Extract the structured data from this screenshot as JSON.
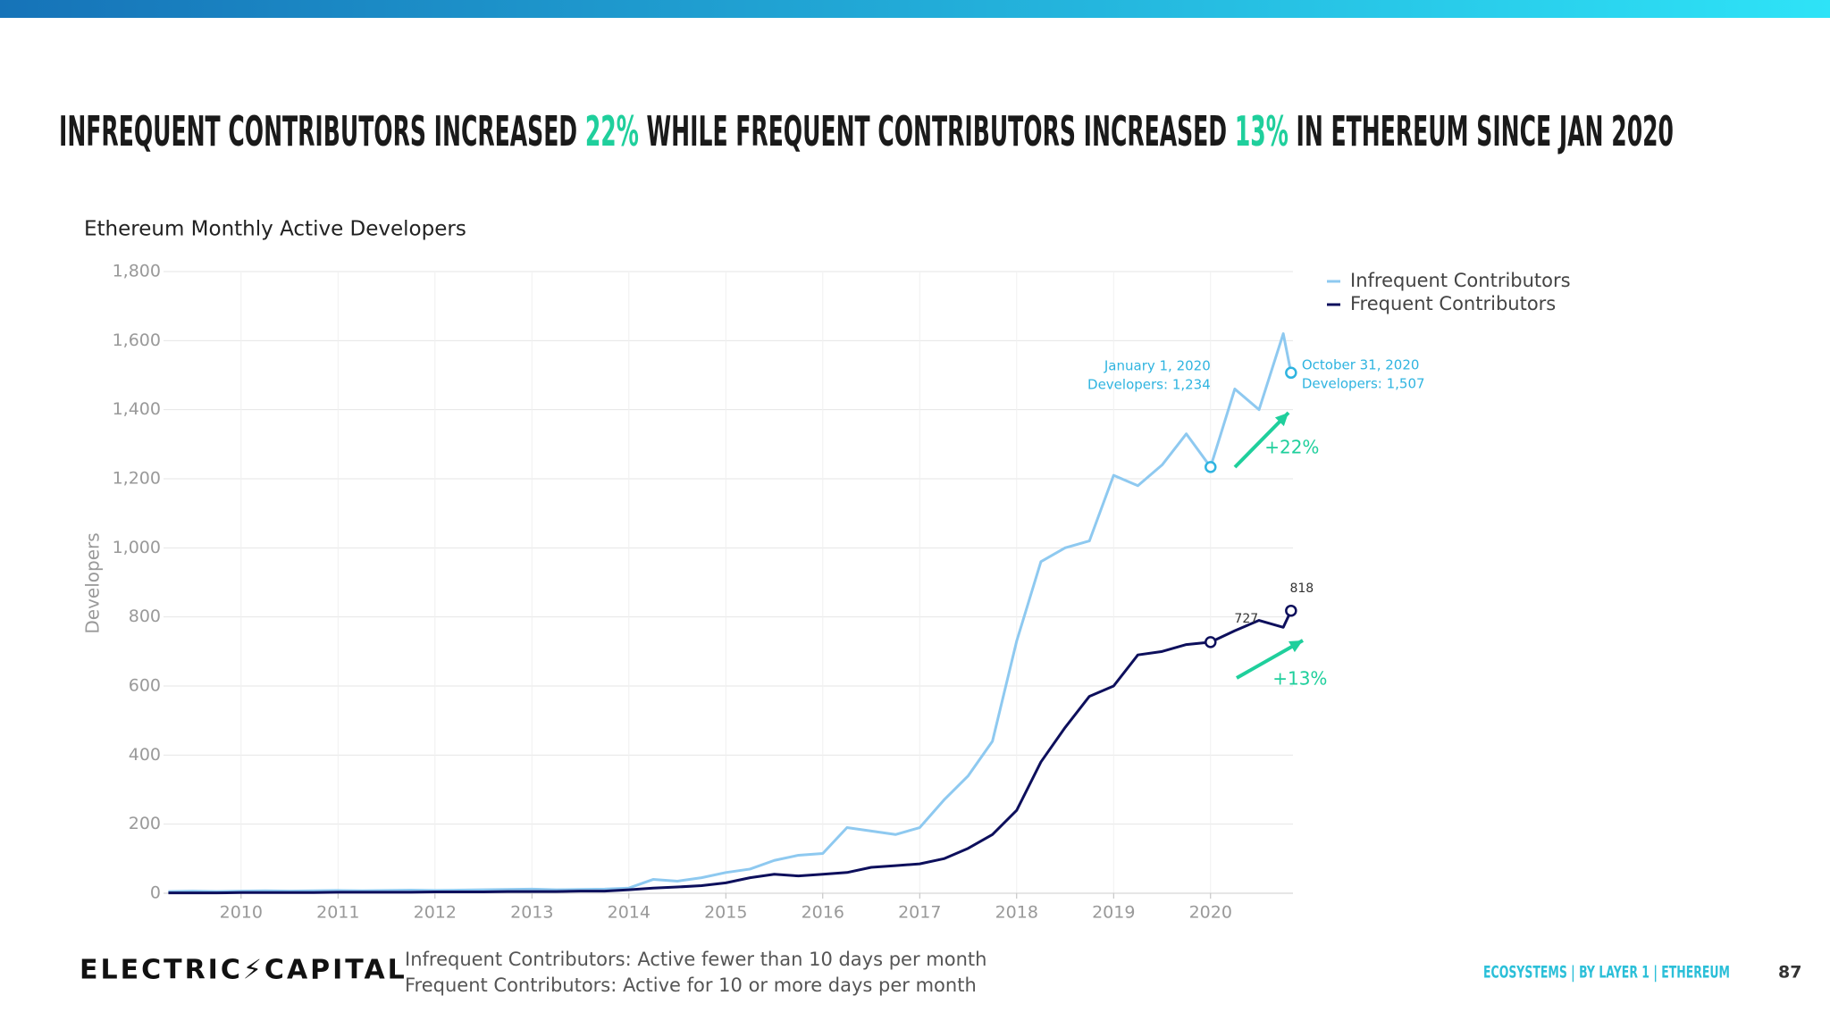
{
  "slide": {
    "title": [
      {
        "text": "INFREQUENT CONTRIBUTORS INCREASED ",
        "highlight": false
      },
      {
        "text": "22%",
        "highlight": true
      },
      {
        "text": " WHILE FREQUENT CONTRIBUTORS INCREASED ",
        "highlight": false
      },
      {
        "text": "13%",
        "highlight": true
      },
      {
        "text": " IN ETHEREUM SINCE JAN 2020",
        "highlight": false
      }
    ],
    "logo": "ELECTRIC⚡CAPITAL",
    "notes": [
      "Infrequent Contributors: Active fewer than 10 days per month",
      "Frequent Contributors: Active for 10 or more days per month"
    ],
    "breadcrumb": "ECOSYSTEMS | BY LAYER 1 | ETHEREUM",
    "page": "87"
  },
  "chart_data": {
    "type": "line",
    "title": "Ethereum Monthly Active Developers",
    "y_label": "Developers",
    "x": [
      2009.25,
      2009.5,
      2009.75,
      2010,
      2010.25,
      2010.5,
      2010.75,
      2011,
      2011.25,
      2011.5,
      2011.75,
      2012,
      2012.25,
      2012.5,
      2012.75,
      2013,
      2013.25,
      2013.5,
      2013.75,
      2014,
      2014.25,
      2014.5,
      2014.75,
      2015,
      2015.25,
      2015.5,
      2015.75,
      2016,
      2016.25,
      2016.5,
      2016.75,
      2017,
      2017.25,
      2017.5,
      2017.75,
      2018,
      2018.25,
      2018.5,
      2018.75,
      2019,
      2019.25,
      2019.5,
      2019.75,
      2020,
      2020.25,
      2020.5,
      2020.75,
      2020.83
    ],
    "series": [
      {
        "name": "Infrequent Contributors",
        "color": "#8ec9f0",
        "values": [
          5,
          6,
          5,
          6,
          7,
          6,
          7,
          8,
          7,
          8,
          9,
          8,
          9,
          10,
          11,
          12,
          10,
          11,
          12,
          15,
          40,
          35,
          45,
          60,
          70,
          95,
          110,
          115,
          190,
          180,
          170,
          190,
          270,
          340,
          440,
          730,
          960,
          1000,
          1020,
          1210,
          1180,
          1240,
          1330,
          1234,
          1460,
          1400,
          1620,
          1507
        ]
      },
      {
        "name": "Frequent Contributors",
        "color": "#0d0f5c",
        "values": [
          1,
          1,
          1,
          2,
          2,
          2,
          2,
          3,
          3,
          3,
          3,
          4,
          4,
          4,
          5,
          5,
          5,
          6,
          6,
          10,
          15,
          18,
          22,
          30,
          45,
          55,
          50,
          55,
          60,
          75,
          80,
          85,
          100,
          130,
          170,
          240,
          380,
          480,
          570,
          600,
          690,
          700,
          720,
          727,
          760,
          790,
          770,
          818
        ]
      }
    ],
    "xlim": [
      2009.2,
      2020.85
    ],
    "xticks": [
      2010,
      2011,
      2012,
      2013,
      2014,
      2015,
      2016,
      2017,
      2018,
      2019,
      2020
    ],
    "ylim": [
      0,
      1800
    ],
    "yticks": [
      0,
      {
        "value": 200,
        "label": "200"
      },
      {
        "value": 400,
        "label": "400"
      },
      {
        "value": 600,
        "label": "600"
      },
      {
        "value": 800,
        "label": "800"
      },
      {
        "value": 1000,
        "label": "1,000"
      },
      {
        "value": 1200,
        "label": "1,200"
      },
      {
        "value": 1400,
        "label": "1,400"
      },
      {
        "value": 1600,
        "label": "1,600"
      },
      {
        "value": 1800,
        "label": "1,800"
      }
    ],
    "grid": true,
    "annotations": [
      "January 1, 2020",
      "Developers: 1,234",
      "October 31, 2020",
      "Developers: 1,507",
      "+22%",
      "+13%",
      "727",
      "818"
    ],
    "annotation_color": "#2fb4e0",
    "highlight_color": "#1fcf9c"
  }
}
